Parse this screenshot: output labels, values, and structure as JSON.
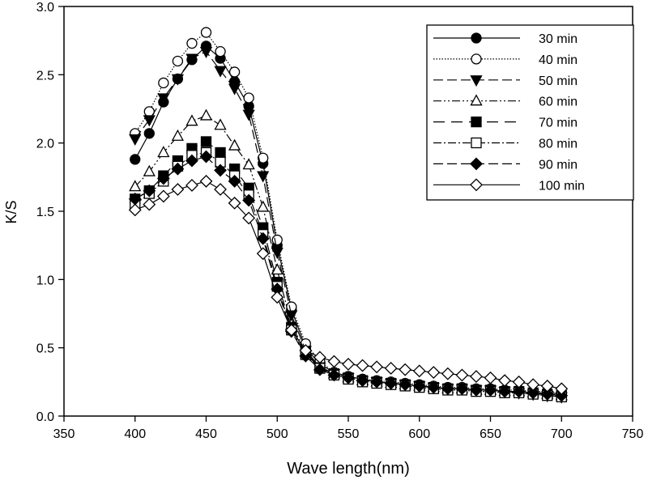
{
  "chart_data": {
    "type": "line",
    "xlabel": "Wave length(nm)",
    "ylabel": "K/S",
    "xlim": [
      350,
      750
    ],
    "ylim": [
      0,
      3.0
    ],
    "xticks": [
      350,
      400,
      450,
      500,
      550,
      600,
      650,
      700,
      750
    ],
    "yticks": [
      "0.0",
      "0.5",
      "1.0",
      "1.5",
      "2.0",
      "2.5",
      "3.0"
    ],
    "grid": false,
    "legend_position": "top-right",
    "x": [
      400,
      410,
      420,
      430,
      440,
      450,
      460,
      470,
      480,
      490,
      500,
      510,
      520,
      530,
      540,
      550,
      560,
      570,
      580,
      590,
      600,
      610,
      620,
      630,
      640,
      650,
      660,
      670,
      680,
      690,
      700
    ],
    "series": [
      {
        "name": "30 min",
        "marker": "filled-circle",
        "dash": "solid",
        "values": [
          1.88,
          2.07,
          2.3,
          2.47,
          2.61,
          2.71,
          2.62,
          2.45,
          2.27,
          1.85,
          1.25,
          0.78,
          0.5,
          0.38,
          0.32,
          0.29,
          0.27,
          0.25,
          0.24,
          0.23,
          0.22,
          0.21,
          0.2,
          0.2,
          0.19,
          0.19,
          0.18,
          0.18,
          0.17,
          0.17,
          0.16
        ]
      },
      {
        "name": "40 min",
        "marker": "open-circle",
        "dash": "dotted",
        "values": [
          2.07,
          2.23,
          2.44,
          2.6,
          2.73,
          2.81,
          2.67,
          2.52,
          2.33,
          1.89,
          1.29,
          0.8,
          0.53,
          0.4,
          0.32,
          0.29,
          0.27,
          0.26,
          0.25,
          0.24,
          0.23,
          0.22,
          0.21,
          0.21,
          0.2,
          0.2,
          0.19,
          0.19,
          0.18,
          0.18,
          0.17
        ]
      },
      {
        "name": "50 min",
        "marker": "filled-triangle-down",
        "dash": "long-dash",
        "values": [
          2.03,
          2.17,
          2.33,
          2.47,
          2.62,
          2.67,
          2.53,
          2.4,
          2.21,
          1.76,
          1.2,
          0.74,
          0.48,
          0.36,
          0.31,
          0.28,
          0.26,
          0.25,
          0.24,
          0.23,
          0.22,
          0.21,
          0.2,
          0.2,
          0.19,
          0.19,
          0.18,
          0.17,
          0.16,
          0.15,
          0.14
        ]
      },
      {
        "name": "60 min",
        "marker": "open-triangle-up",
        "dash": "dash-dot-dot",
        "values": [
          1.68,
          1.79,
          1.93,
          2.05,
          2.16,
          2.2,
          2.13,
          1.98,
          1.84,
          1.53,
          1.07,
          0.67,
          0.47,
          0.36,
          0.31,
          0.28,
          0.26,
          0.25,
          0.24,
          0.23,
          0.22,
          0.21,
          0.2,
          0.2,
          0.19,
          0.19,
          0.18,
          0.18,
          0.17,
          0.16,
          0.15
        ]
      },
      {
        "name": "70 min",
        "marker": "filled-square",
        "dash": "long-dash-gap",
        "values": [
          1.59,
          1.65,
          1.76,
          1.87,
          1.96,
          2.01,
          1.93,
          1.81,
          1.67,
          1.38,
          0.98,
          0.65,
          0.46,
          0.35,
          0.31,
          0.28,
          0.26,
          0.25,
          0.24,
          0.23,
          0.22,
          0.21,
          0.2,
          0.2,
          0.19,
          0.19,
          0.18,
          0.18,
          0.17,
          0.16,
          0.15
        ]
      },
      {
        "name": "80 min",
        "marker": "open-square",
        "dash": "dash-dot",
        "values": [
          1.55,
          1.63,
          1.72,
          1.83,
          1.91,
          1.93,
          1.86,
          1.76,
          1.62,
          1.33,
          0.95,
          0.63,
          0.45,
          0.35,
          0.3,
          0.27,
          0.25,
          0.24,
          0.23,
          0.22,
          0.21,
          0.2,
          0.19,
          0.19,
          0.18,
          0.18,
          0.17,
          0.17,
          0.16,
          0.15,
          0.14
        ]
      },
      {
        "name": "90 min",
        "marker": "filled-diamond",
        "dash": "long-dash",
        "values": [
          1.59,
          1.65,
          1.74,
          1.81,
          1.87,
          1.9,
          1.8,
          1.72,
          1.58,
          1.3,
          0.93,
          0.62,
          0.44,
          0.34,
          0.3,
          0.28,
          0.26,
          0.25,
          0.24,
          0.23,
          0.22,
          0.21,
          0.2,
          0.2,
          0.19,
          0.19,
          0.18,
          0.18,
          0.17,
          0.16,
          0.15
        ]
      },
      {
        "name": "100 min",
        "marker": "open-diamond",
        "dash": "solid",
        "values": [
          1.51,
          1.55,
          1.61,
          1.66,
          1.69,
          1.72,
          1.66,
          1.56,
          1.45,
          1.19,
          0.87,
          0.63,
          0.48,
          0.43,
          0.4,
          0.38,
          0.37,
          0.36,
          0.35,
          0.34,
          0.33,
          0.32,
          0.31,
          0.3,
          0.29,
          0.28,
          0.26,
          0.25,
          0.23,
          0.22,
          0.2
        ]
      }
    ]
  }
}
